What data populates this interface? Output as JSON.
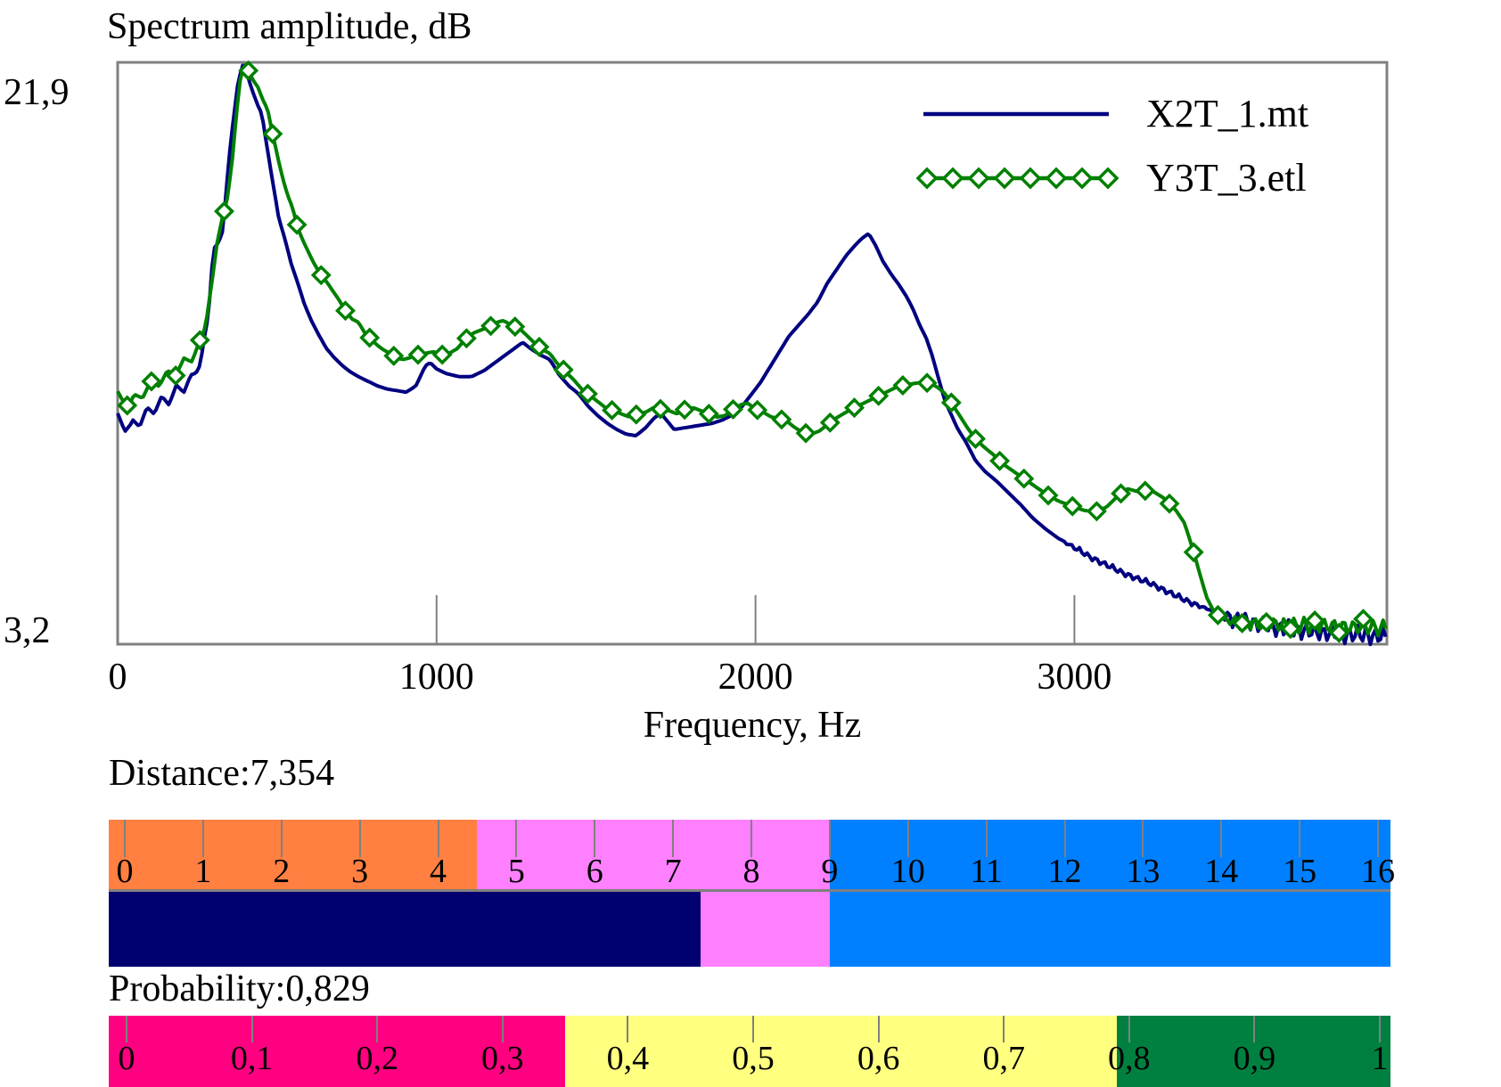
{
  "chart": {
    "title": "Spectrum amplitude, dB",
    "y_axis": {
      "max_label": "21,9",
      "min_label": "3,2",
      "max": 21.9,
      "min": 3.2
    },
    "x_axis": {
      "title": "Frequency, Hz",
      "tick_labels": [
        "0",
        "1000",
        "2000",
        "3000"
      ],
      "tick_values": [
        0,
        1000,
        2000,
        3000
      ],
      "max": 3980
    },
    "legend": [
      {
        "label": "X2T_1.mt",
        "color": "#000080",
        "marker": "none"
      },
      {
        "label": "Y3T_3.etl",
        "color": "#008000",
        "marker": "diamond"
      }
    ],
    "frame_color": "#808080"
  },
  "chart_data": {
    "type": "line",
    "title": "Spectrum amplitude, dB",
    "xlabel": "Frequency, Hz",
    "ylabel": "Spectrum amplitude, dB",
    "xlim": [
      0,
      3980
    ],
    "ylim": [
      3.2,
      21.9
    ],
    "grid": false,
    "legend_position": "top-right",
    "series": [
      {
        "name": "X2T_1.mt",
        "color": "#000080",
        "marker": "none",
        "points": [
          [
            0,
            10.4
          ],
          [
            40,
            10.15
          ],
          [
            80,
            10.5
          ],
          [
            120,
            10.85
          ],
          [
            160,
            11.1
          ],
          [
            200,
            11.45
          ],
          [
            230,
            11.65
          ],
          [
            260,
            12.3
          ],
          [
            285,
            13.8
          ],
          [
            300,
            15.9
          ],
          [
            316,
            16.1
          ],
          [
            330,
            16.5
          ],
          [
            348,
            18.7
          ],
          [
            362,
            20.0
          ],
          [
            378,
            21.3
          ],
          [
            392,
            21.8
          ],
          [
            408,
            21.45
          ],
          [
            422,
            21.0
          ],
          [
            438,
            20.55
          ],
          [
            452,
            20.25
          ],
          [
            468,
            19.2
          ],
          [
            484,
            18.2
          ],
          [
            505,
            16.9
          ],
          [
            525,
            16.2
          ],
          [
            545,
            15.4
          ],
          [
            565,
            14.8
          ],
          [
            585,
            14.15
          ],
          [
            605,
            13.65
          ],
          [
            630,
            13.15
          ],
          [
            655,
            12.7
          ],
          [
            680,
            12.4
          ],
          [
            705,
            12.15
          ],
          [
            730,
            11.95
          ],
          [
            755,
            11.8
          ],
          [
            785,
            11.65
          ],
          [
            815,
            11.5
          ],
          [
            845,
            11.4
          ],
          [
            875,
            11.35
          ],
          [
            905,
            11.3
          ],
          [
            935,
            11.5
          ],
          [
            965,
            12.15
          ],
          [
            980,
            12.25
          ],
          [
            1000,
            12.05
          ],
          [
            1030,
            11.9
          ],
          [
            1070,
            11.8
          ],
          [
            1110,
            11.8
          ],
          [
            1150,
            12.0
          ],
          [
            1190,
            12.3
          ],
          [
            1230,
            12.6
          ],
          [
            1270,
            12.9
          ],
          [
            1295,
            12.7
          ],
          [
            1325,
            12.5
          ],
          [
            1355,
            12.35
          ],
          [
            1385,
            11.85
          ],
          [
            1415,
            11.5
          ],
          [
            1445,
            11.25
          ],
          [
            1475,
            10.85
          ],
          [
            1505,
            10.55
          ],
          [
            1535,
            10.3
          ],
          [
            1565,
            10.1
          ],
          [
            1595,
            9.95
          ],
          [
            1625,
            9.9
          ],
          [
            1655,
            10.15
          ],
          [
            1685,
            10.5
          ],
          [
            1705,
            10.6
          ],
          [
            1725,
            10.35
          ],
          [
            1745,
            10.1
          ],
          [
            1775,
            10.15
          ],
          [
            1805,
            10.2
          ],
          [
            1835,
            10.25
          ],
          [
            1865,
            10.3
          ],
          [
            1895,
            10.4
          ],
          [
            1925,
            10.55
          ],
          [
            1955,
            10.8
          ],
          [
            1985,
            11.2
          ],
          [
            2015,
            11.6
          ],
          [
            2045,
            12.1
          ],
          [
            2075,
            12.6
          ],
          [
            2105,
            13.1
          ],
          [
            2135,
            13.45
          ],
          [
            2165,
            13.8
          ],
          [
            2195,
            14.2
          ],
          [
            2225,
            14.8
          ],
          [
            2255,
            15.25
          ],
          [
            2285,
            15.7
          ],
          [
            2315,
            16.05
          ],
          [
            2335,
            16.25
          ],
          [
            2355,
            16.4
          ],
          [
            2375,
            16.05
          ],
          [
            2400,
            15.5
          ],
          [
            2425,
            15.1
          ],
          [
            2450,
            14.75
          ],
          [
            2475,
            14.35
          ],
          [
            2495,
            13.95
          ],
          [
            2515,
            13.45
          ],
          [
            2535,
            13.05
          ],
          [
            2555,
            12.45
          ],
          [
            2575,
            11.7
          ],
          [
            2595,
            11.0
          ],
          [
            2615,
            10.55
          ],
          [
            2635,
            10.1
          ],
          [
            2660,
            9.7
          ],
          [
            2690,
            9.1
          ],
          [
            2720,
            8.75
          ],
          [
            2755,
            8.45
          ],
          [
            2790,
            8.1
          ],
          [
            2830,
            7.7
          ],
          [
            2870,
            7.25
          ],
          [
            2910,
            6.9
          ],
          [
            2950,
            6.6
          ],
          [
            3000,
            6.3
          ],
          [
            3050,
            6.0
          ],
          [
            3100,
            5.75
          ],
          [
            3150,
            5.5
          ],
          [
            3200,
            5.3
          ],
          [
            3250,
            5.1
          ],
          [
            3300,
            4.85
          ],
          [
            3350,
            4.6
          ],
          [
            3400,
            4.4
          ],
          [
            3450,
            4.2
          ],
          [
            3500,
            4.0
          ],
          [
            3550,
            3.9
          ],
          [
            3600,
            3.8
          ],
          [
            3650,
            3.7
          ],
          [
            3700,
            3.65
          ],
          [
            3750,
            3.6
          ],
          [
            3800,
            3.55
          ],
          [
            3850,
            3.5
          ],
          [
            3900,
            3.5
          ],
          [
            3950,
            3.45
          ],
          [
            3980,
            3.45
          ]
        ]
      },
      {
        "name": "Y3T_3.etl",
        "color": "#008000",
        "marker": "diamond",
        "marker_interval_hz": 76,
        "points": [
          [
            0,
            11.15
          ],
          [
            40,
            10.95
          ],
          [
            80,
            11.3
          ],
          [
            120,
            11.6
          ],
          [
            160,
            11.85
          ],
          [
            200,
            12.15
          ],
          [
            230,
            12.4
          ],
          [
            255,
            12.8
          ],
          [
            275,
            13.4
          ],
          [
            295,
            14.8
          ],
          [
            312,
            16.1
          ],
          [
            328,
            16.9
          ],
          [
            342,
            17.4
          ],
          [
            358,
            18.6
          ],
          [
            372,
            20.2
          ],
          [
            386,
            21.5
          ],
          [
            398,
            21.85
          ],
          [
            412,
            21.6
          ],
          [
            426,
            21.3
          ],
          [
            440,
            21.1
          ],
          [
            455,
            20.7
          ],
          [
            470,
            20.4
          ],
          [
            486,
            19.6
          ],
          [
            502,
            18.85
          ],
          [
            518,
            18.15
          ],
          [
            534,
            17.6
          ],
          [
            548,
            17.25
          ],
          [
            564,
            16.6
          ],
          [
            580,
            16.2
          ],
          [
            596,
            15.85
          ],
          [
            615,
            15.45
          ],
          [
            635,
            15.1
          ],
          [
            655,
            14.85
          ],
          [
            675,
            14.55
          ],
          [
            695,
            14.25
          ],
          [
            715,
            13.9
          ],
          [
            735,
            13.65
          ],
          [
            755,
            13.55
          ],
          [
            775,
            13.2
          ],
          [
            795,
            13.0
          ],
          [
            815,
            12.8
          ],
          [
            835,
            12.65
          ],
          [
            855,
            12.55
          ],
          [
            875,
            12.4
          ],
          [
            895,
            12.35
          ],
          [
            915,
            12.4
          ],
          [
            940,
            12.5
          ],
          [
            965,
            12.55
          ],
          [
            990,
            12.6
          ],
          [
            1015,
            12.5
          ],
          [
            1040,
            12.55
          ],
          [
            1065,
            12.7
          ],
          [
            1090,
            13.0
          ],
          [
            1115,
            13.2
          ],
          [
            1140,
            13.3
          ],
          [
            1165,
            13.4
          ],
          [
            1190,
            13.55
          ],
          [
            1210,
            13.6
          ],
          [
            1235,
            13.45
          ],
          [
            1260,
            13.35
          ],
          [
            1285,
            13.1
          ],
          [
            1310,
            12.85
          ],
          [
            1335,
            12.65
          ],
          [
            1355,
            12.55
          ],
          [
            1380,
            12.2
          ],
          [
            1405,
            11.95
          ],
          [
            1430,
            11.7
          ],
          [
            1455,
            11.4
          ],
          [
            1480,
            11.2
          ],
          [
            1505,
            11.0
          ],
          [
            1530,
            10.8
          ],
          [
            1555,
            10.7
          ],
          [
            1580,
            10.6
          ],
          [
            1605,
            10.5
          ],
          [
            1630,
            10.6
          ],
          [
            1655,
            10.65
          ],
          [
            1680,
            10.8
          ],
          [
            1705,
            10.75
          ],
          [
            1730,
            10.7
          ],
          [
            1755,
            10.6
          ],
          [
            1780,
            10.75
          ],
          [
            1805,
            10.8
          ],
          [
            1830,
            10.7
          ],
          [
            1855,
            10.6
          ],
          [
            1880,
            10.5
          ],
          [
            1905,
            10.55
          ],
          [
            1930,
            10.75
          ],
          [
            1955,
            10.9
          ],
          [
            1975,
            10.95
          ],
          [
            2000,
            10.75
          ],
          [
            2025,
            10.65
          ],
          [
            2050,
            10.5
          ],
          [
            2075,
            10.45
          ],
          [
            2100,
            10.35
          ],
          [
            2125,
            10.15
          ],
          [
            2150,
            10.0
          ],
          [
            2175,
            9.95
          ],
          [
            2200,
            10.05
          ],
          [
            2225,
            10.25
          ],
          [
            2250,
            10.45
          ],
          [
            2275,
            10.6
          ],
          [
            2300,
            10.75
          ],
          [
            2330,
            10.9
          ],
          [
            2360,
            11.05
          ],
          [
            2390,
            11.2
          ],
          [
            2420,
            11.35
          ],
          [
            2450,
            11.5
          ],
          [
            2480,
            11.55
          ],
          [
            2510,
            11.6
          ],
          [
            2540,
            11.6
          ],
          [
            2565,
            11.5
          ],
          [
            2590,
            11.3
          ],
          [
            2615,
            10.95
          ],
          [
            2640,
            10.55
          ],
          [
            2665,
            10.15
          ],
          [
            2690,
            9.8
          ],
          [
            2715,
            9.55
          ],
          [
            2745,
            9.3
          ],
          [
            2775,
            9.0
          ],
          [
            2810,
            8.75
          ],
          [
            2845,
            8.5
          ],
          [
            2880,
            8.25
          ],
          [
            2915,
            8.0
          ],
          [
            2950,
            7.8
          ],
          [
            2990,
            7.65
          ],
          [
            3030,
            7.5
          ],
          [
            3065,
            7.45
          ],
          [
            3100,
            7.6
          ],
          [
            3135,
            7.95
          ],
          [
            3165,
            8.2
          ],
          [
            3200,
            8.1
          ],
          [
            3240,
            8.15
          ],
          [
            3280,
            7.9
          ],
          [
            3315,
            7.55
          ],
          [
            3345,
            7.1
          ],
          [
            3370,
            6.3
          ],
          [
            3395,
            5.4
          ],
          [
            3415,
            4.7
          ],
          [
            3440,
            4.2
          ],
          [
            3470,
            4.0
          ],
          [
            3510,
            3.9
          ],
          [
            3560,
            3.85
          ],
          [
            3620,
            3.85
          ],
          [
            3680,
            3.8
          ],
          [
            3740,
            3.8
          ],
          [
            3800,
            3.8
          ],
          [
            3860,
            3.75
          ],
          [
            3920,
            3.75
          ],
          [
            3980,
            3.7
          ]
        ]
      }
    ],
    "noise_bands": {
      "X2T_1.mt": [
        {
          "from": 0,
          "to": 290,
          "amp": 0.22,
          "period": 46
        },
        {
          "from": 2950,
          "to": 3430,
          "amp": 0.1,
          "period": 26
        },
        {
          "from": 3430,
          "to": 3980,
          "amp": 0.3,
          "period": 27
        }
      ],
      "Y3T_3.etl": [
        {
          "from": 0,
          "to": 290,
          "amp": 0.18,
          "period": 52
        },
        {
          "from": 3460,
          "to": 3980,
          "amp": 0.26,
          "period": 31
        }
      ]
    }
  },
  "distance_gauge": {
    "label": "Distance:7,354",
    "value": 7.354,
    "min": 0,
    "max": 16,
    "tick_labels": [
      "0",
      "1",
      "2",
      "3",
      "4",
      "5",
      "6",
      "7",
      "8",
      "9",
      "10",
      "11",
      "12",
      "13",
      "14",
      "15",
      "16"
    ],
    "zones": [
      {
        "from": 0,
        "to": 4.5,
        "color": "#FF8040"
      },
      {
        "from": 4.5,
        "to": 9,
        "color": "#FF80FF"
      },
      {
        "from": 9,
        "to": 16,
        "color": "#0080FF"
      }
    ],
    "value_color": "#000070"
  },
  "probability_gauge": {
    "label": "Probability:0,829",
    "value": 0.829,
    "min": 0,
    "max": 1,
    "tick_labels": [
      "0",
      "0,1",
      "0,2",
      "0,3",
      "0,4",
      "0,5",
      "0,6",
      "0,7",
      "0,8",
      "0,9",
      "1"
    ],
    "zones": [
      {
        "from": 0,
        "to": 0.35,
        "color": "#FF0080"
      },
      {
        "from": 0.35,
        "to": 0.79,
        "color": "#FFFF80"
      },
      {
        "from": 0.79,
        "to": 1,
        "color": "#008040"
      }
    ]
  }
}
